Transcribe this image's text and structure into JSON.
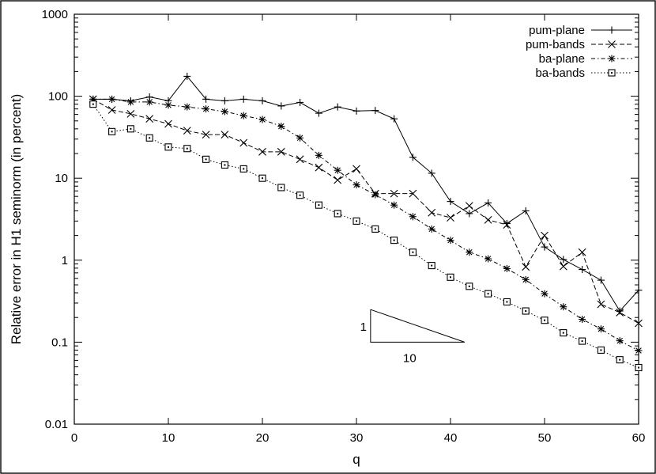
{
  "chart_data": {
    "type": "line",
    "title": "",
    "xlabel": "q",
    "ylabel": "Relative error in H1 seminorm  (in percent)",
    "xlim": [
      0,
      60
    ],
    "ylim": [
      0.01,
      1000
    ],
    "yscale": "log",
    "grid": false,
    "legend_position": "top-right",
    "x_ticks": [
      "0",
      "10",
      "20",
      "30",
      "40",
      "50",
      "60"
    ],
    "y_ticks": [
      "0.01",
      "0.1",
      "1",
      "10",
      "100",
      "1000"
    ],
    "x": [
      2,
      4,
      6,
      8,
      10,
      12,
      14,
      16,
      18,
      20,
      22,
      24,
      26,
      28,
      30,
      32,
      34,
      36,
      38,
      40,
      42,
      44,
      46,
      48,
      50,
      52,
      54,
      56,
      58,
      60
    ],
    "series": [
      {
        "name": "pum-plane",
        "line": "solid",
        "marker": "plus",
        "values": [
          92,
          92,
          88,
          98,
          88,
          175,
          92,
          88,
          92,
          88,
          76,
          84,
          62,
          74,
          66,
          67,
          53,
          18,
          11.5,
          5.2,
          3.7,
          5.0,
          2.8,
          4.0,
          1.45,
          1.02,
          0.77,
          0.57,
          0.24,
          0.43
        ]
      },
      {
        "name": "pum-bands",
        "line": "dashed",
        "marker": "cross",
        "values": [
          92,
          68,
          61,
          53,
          46,
          38,
          34,
          34,
          27,
          21,
          21,
          17,
          13.5,
          9.5,
          13,
          6.5,
          6.5,
          6.5,
          3.8,
          3.3,
          4.6,
          3.1,
          2.7,
          0.83,
          2.0,
          0.84,
          1.25,
          0.29,
          0.23,
          0.17
        ]
      },
      {
        "name": "ba-plane",
        "line": "dotted-dashed",
        "marker": "asterisk",
        "values": [
          92,
          92,
          85,
          85,
          78,
          74,
          70,
          65,
          58,
          52,
          43,
          31,
          19,
          12.5,
          8.3,
          6.3,
          4.7,
          3.4,
          2.4,
          1.75,
          1.25,
          1.04,
          0.79,
          0.58,
          0.39,
          0.27,
          0.19,
          0.145,
          0.104,
          0.079
        ]
      },
      {
        "name": "ba-bands",
        "line": "dotted",
        "marker": "square",
        "values": [
          80,
          37,
          40,
          31,
          24,
          23,
          17,
          14.5,
          13,
          10,
          7.7,
          6.2,
          4.7,
          3.7,
          3.0,
          2.4,
          1.75,
          1.25,
          0.86,
          0.62,
          0.48,
          0.39,
          0.31,
          0.24,
          0.185,
          0.13,
          0.103,
          0.08,
          0.061,
          0.049
        ]
      }
    ],
    "annotations": {
      "slope_triangle": {
        "x_start": 31.5,
        "x_end": 41.5,
        "y_low": 0.1,
        "y_high": 0.25,
        "vertical_label": "1",
        "horizontal_label": "10"
      }
    }
  }
}
